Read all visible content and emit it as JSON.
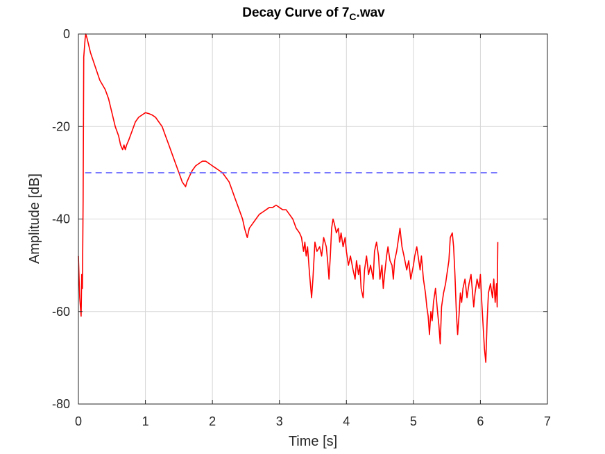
{
  "chart_data": {
    "type": "line",
    "title": "Decay Curve of 7",
    "title_subscript": "C",
    "title_suffix": ".wav",
    "xlabel": "Time [s]",
    "ylabel": "Amplitude [dB]",
    "xlim": [
      0,
      7
    ],
    "ylim": [
      -80,
      0
    ],
    "xticks": [
      0,
      1,
      2,
      3,
      4,
      5,
      6,
      7
    ],
    "yticks": [
      0,
      -20,
      -40,
      -60,
      -80
    ],
    "xtick_labels": [
      "0",
      "1",
      "2",
      "3",
      "4",
      "5",
      "6",
      "7"
    ],
    "ytick_labels": [
      "0",
      "-20",
      "-40",
      "-60",
      "-80"
    ],
    "grid": true,
    "series": [
      {
        "color": "#ff0000",
        "style": "solid",
        "points": [
          [
            0.0,
            -48
          ],
          [
            0.02,
            -57
          ],
          [
            0.04,
            -61
          ],
          [
            0.05,
            -52
          ],
          [
            0.06,
            -55
          ],
          [
            0.07,
            -36
          ],
          [
            0.08,
            -5
          ],
          [
            0.09,
            -3
          ],
          [
            0.1,
            -1
          ],
          [
            0.11,
            0
          ],
          [
            0.13,
            -1
          ],
          [
            0.18,
            -4
          ],
          [
            0.25,
            -7
          ],
          [
            0.32,
            -10
          ],
          [
            0.4,
            -12
          ],
          [
            0.45,
            -14
          ],
          [
            0.5,
            -17
          ],
          [
            0.55,
            -20
          ],
          [
            0.6,
            -22
          ],
          [
            0.63,
            -24
          ],
          [
            0.66,
            -25
          ],
          [
            0.68,
            -24
          ],
          [
            0.7,
            -25
          ],
          [
            0.72,
            -24
          ],
          [
            0.75,
            -23
          ],
          [
            0.8,
            -21
          ],
          [
            0.85,
            -19
          ],
          [
            0.9,
            -18
          ],
          [
            0.95,
            -17.5
          ],
          [
            1.0,
            -17
          ],
          [
            1.05,
            -17.2
          ],
          [
            1.1,
            -17.5
          ],
          [
            1.15,
            -18
          ],
          [
            1.2,
            -19
          ],
          [
            1.25,
            -20
          ],
          [
            1.3,
            -22
          ],
          [
            1.35,
            -24
          ],
          [
            1.4,
            -26
          ],
          [
            1.45,
            -28
          ],
          [
            1.5,
            -30
          ],
          [
            1.55,
            -32
          ],
          [
            1.6,
            -33
          ],
          [
            1.62,
            -32
          ],
          [
            1.65,
            -31
          ],
          [
            1.7,
            -29.5
          ],
          [
            1.75,
            -28.5
          ],
          [
            1.8,
            -28
          ],
          [
            1.85,
            -27.5
          ],
          [
            1.9,
            -27.5
          ],
          [
            1.95,
            -28
          ],
          [
            2.0,
            -28.5
          ],
          [
            2.05,
            -29
          ],
          [
            2.1,
            -29.5
          ],
          [
            2.15,
            -30
          ],
          [
            2.2,
            -31
          ],
          [
            2.25,
            -32
          ],
          [
            2.3,
            -34
          ],
          [
            2.35,
            -36
          ],
          [
            2.4,
            -38
          ],
          [
            2.45,
            -40
          ],
          [
            2.48,
            -42
          ],
          [
            2.5,
            -43
          ],
          [
            2.52,
            -44
          ],
          [
            2.55,
            -42
          ],
          [
            2.6,
            -41
          ],
          [
            2.65,
            -40
          ],
          [
            2.7,
            -39
          ],
          [
            2.75,
            -38.5
          ],
          [
            2.8,
            -38
          ],
          [
            2.85,
            -37.5
          ],
          [
            2.9,
            -37.5
          ],
          [
            2.95,
            -37
          ],
          [
            3.0,
            -37.5
          ],
          [
            3.05,
            -38
          ],
          [
            3.1,
            -38
          ],
          [
            3.15,
            -39
          ],
          [
            3.2,
            -40
          ],
          [
            3.25,
            -42
          ],
          [
            3.3,
            -43
          ],
          [
            3.33,
            -44
          ],
          [
            3.36,
            -47
          ],
          [
            3.38,
            -45
          ],
          [
            3.4,
            -48
          ],
          [
            3.42,
            -46
          ],
          [
            3.45,
            -52
          ],
          [
            3.48,
            -57
          ],
          [
            3.5,
            -53
          ],
          [
            3.53,
            -45
          ],
          [
            3.56,
            -47
          ],
          [
            3.6,
            -46
          ],
          [
            3.63,
            -48
          ],
          [
            3.66,
            -44
          ],
          [
            3.7,
            -46
          ],
          [
            3.72,
            -49
          ],
          [
            3.74,
            -53
          ],
          [
            3.76,
            -48
          ],
          [
            3.78,
            -42
          ],
          [
            3.8,
            -40
          ],
          [
            3.82,
            -41
          ],
          [
            3.85,
            -43
          ],
          [
            3.88,
            -42
          ],
          [
            3.9,
            -45
          ],
          [
            3.92,
            -43
          ],
          [
            3.95,
            -46
          ],
          [
            3.98,
            -44
          ],
          [
            4.0,
            -47
          ],
          [
            4.03,
            -50
          ],
          [
            4.06,
            -48
          ],
          [
            4.1,
            -51
          ],
          [
            4.13,
            -53
          ],
          [
            4.15,
            -49
          ],
          [
            4.18,
            -52
          ],
          [
            4.2,
            -50
          ],
          [
            4.22,
            -55
          ],
          [
            4.25,
            -57
          ],
          [
            4.27,
            -51
          ],
          [
            4.3,
            -48
          ],
          [
            4.33,
            -52
          ],
          [
            4.36,
            -50
          ],
          [
            4.4,
            -53
          ],
          [
            4.42,
            -47
          ],
          [
            4.45,
            -45
          ],
          [
            4.48,
            -48
          ],
          [
            4.5,
            -53
          ],
          [
            4.53,
            -50
          ],
          [
            4.55,
            -55
          ],
          [
            4.57,
            -52
          ],
          [
            4.6,
            -48
          ],
          [
            4.62,
            -46
          ],
          [
            4.65,
            -49
          ],
          [
            4.68,
            -50
          ],
          [
            4.7,
            -53
          ],
          [
            4.72,
            -49
          ],
          [
            4.75,
            -47
          ],
          [
            4.78,
            -44
          ],
          [
            4.8,
            -42
          ],
          [
            4.83,
            -46
          ],
          [
            4.86,
            -48
          ],
          [
            4.9,
            -51
          ],
          [
            4.93,
            -49
          ],
          [
            4.96,
            -53
          ],
          [
            5.0,
            -50
          ],
          [
            5.02,
            -48
          ],
          [
            5.05,
            -46
          ],
          [
            5.08,
            -49
          ],
          [
            5.1,
            -51
          ],
          [
            5.12,
            -48
          ],
          [
            5.15,
            -53
          ],
          [
            5.18,
            -56
          ],
          [
            5.2,
            -59
          ],
          [
            5.22,
            -61
          ],
          [
            5.24,
            -65
          ],
          [
            5.26,
            -60
          ],
          [
            5.28,
            -62
          ],
          [
            5.3,
            -58
          ],
          [
            5.33,
            -55
          ],
          [
            5.36,
            -60
          ],
          [
            5.38,
            -63
          ],
          [
            5.4,
            -67
          ],
          [
            5.42,
            -59
          ],
          [
            5.45,
            -56
          ],
          [
            5.48,
            -54
          ],
          [
            5.5,
            -52
          ],
          [
            5.53,
            -49
          ],
          [
            5.55,
            -44
          ],
          [
            5.58,
            -43
          ],
          [
            5.6,
            -46
          ],
          [
            5.62,
            -52
          ],
          [
            5.64,
            -60
          ],
          [
            5.66,
            -65
          ],
          [
            5.68,
            -61
          ],
          [
            5.7,
            -56
          ],
          [
            5.72,
            -58
          ],
          [
            5.74,
            -55
          ],
          [
            5.77,
            -53
          ],
          [
            5.8,
            -57
          ],
          [
            5.83,
            -54
          ],
          [
            5.86,
            -52
          ],
          [
            5.9,
            -59
          ],
          [
            5.92,
            -56
          ],
          [
            5.95,
            -53
          ],
          [
            5.98,
            -55
          ],
          [
            6.0,
            -52
          ],
          [
            6.02,
            -58
          ],
          [
            6.04,
            -63
          ],
          [
            6.06,
            -68
          ],
          [
            6.08,
            -71
          ],
          [
            6.1,
            -62
          ],
          [
            6.12,
            -56
          ],
          [
            6.15,
            -54
          ],
          [
            6.18,
            -57
          ],
          [
            6.2,
            -53
          ],
          [
            6.22,
            -58
          ],
          [
            6.24,
            -54
          ],
          [
            6.25,
            -59
          ],
          [
            6.26,
            -45
          ]
        ]
      },
      {
        "color": "#6666ff",
        "style": "dashed",
        "points": [
          [
            0.1,
            -30
          ],
          [
            6.25,
            -30
          ]
        ]
      }
    ]
  }
}
